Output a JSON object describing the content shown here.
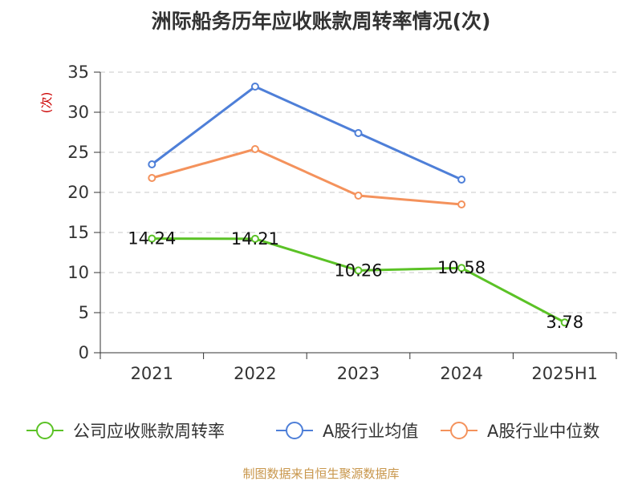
{
  "chart_data": {
    "type": "line",
    "title": "洲际船务历年应收账款周转率情况(次)",
    "ylabel": "(次)",
    "categories": [
      "2021",
      "2022",
      "2023",
      "2024",
      "2025H1"
    ],
    "ylim": [
      0,
      35
    ],
    "yticks": [
      0,
      5,
      10,
      15,
      20,
      25,
      30,
      35
    ],
    "grid": true,
    "legend_position": "bottom",
    "series": [
      {
        "name": "公司应收账款周转率",
        "color": "#5bc226",
        "values": [
          14.24,
          14.21,
          10.26,
          10.58,
          3.78
        ],
        "labels": [
          "14.24",
          "14.21",
          "10.26",
          "10.58",
          "3.78"
        ]
      },
      {
        "name": "A股行业均值",
        "color": "#4e7fd8",
        "values": [
          23.5,
          33.2,
          27.4,
          21.6,
          null
        ]
      },
      {
        "name": "A股行业中位数",
        "color": "#f4925c",
        "values": [
          21.8,
          25.4,
          19.6,
          18.5,
          null
        ]
      }
    ]
  },
  "source": "制图数据来自恒生聚源数据库"
}
